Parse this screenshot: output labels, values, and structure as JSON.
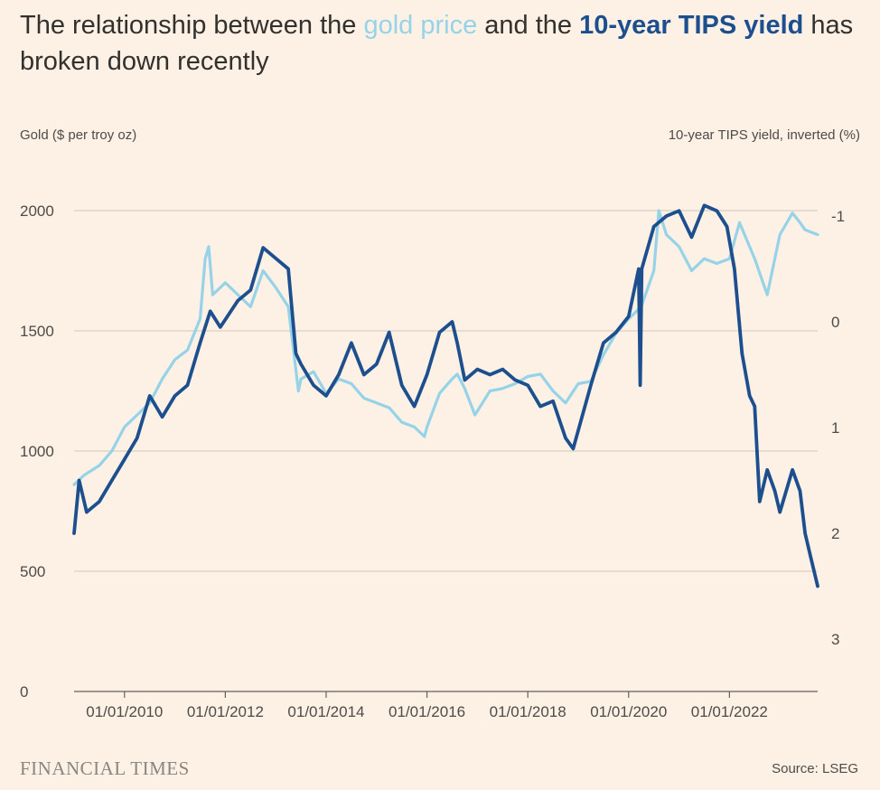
{
  "title": {
    "part1": "The relationship between the ",
    "gold": "gold price",
    "part2": " and the ",
    "tips": "10-year TIPS yield",
    "part3": " has broken down recently"
  },
  "left_axis_label": "Gold ($ per troy oz)",
  "right_axis_label": "10-year TIPS yield, inverted (%)",
  "brand": "FINANCIAL TIMES",
  "source": "Source: LSEG",
  "colors": {
    "gold": "#96d3e8",
    "tips": "#1d4f8f",
    "grid": "#cfc6bc",
    "background": "#fdf1e5"
  },
  "chart_data": {
    "type": "line",
    "title": "The relationship between the gold price and the 10-year TIPS yield has broken down recently",
    "ylabel_left": "Gold ($ per troy oz)",
    "ylabel_right": "10-year TIPS yield, inverted (%)",
    "ylim_left": [
      0,
      2000
    ],
    "yticks_left": [
      0,
      500,
      1000,
      1500,
      2000
    ],
    "yticks_right": [
      -1,
      0,
      1,
      2,
      3
    ],
    "right_axis_inverted": true,
    "x_range": [
      2009.0,
      2023.75
    ],
    "xtick_labels": [
      "01/01/2010",
      "01/01/2012",
      "01/01/2014",
      "01/01/2016",
      "01/01/2018",
      "01/01/2020",
      "01/01/2022"
    ],
    "xtick_years": [
      2010,
      2012,
      2014,
      2016,
      2018,
      2020,
      2022
    ],
    "series": [
      {
        "name": "Gold price",
        "axis": "left",
        "x": [
          2009.0,
          2009.2,
          2009.5,
          2009.75,
          2010.0,
          2010.25,
          2010.5,
          2010.75,
          2011.0,
          2011.25,
          2011.5,
          2011.6,
          2011.67,
          2011.75,
          2012.0,
          2012.25,
          2012.5,
          2012.75,
          2013.0,
          2013.25,
          2013.45,
          2013.5,
          2013.75,
          2014.0,
          2014.25,
          2014.5,
          2014.75,
          2015.0,
          2015.25,
          2015.5,
          2015.75,
          2015.95,
          2016.0,
          2016.25,
          2016.5,
          2016.6,
          2016.75,
          2016.95,
          2017.25,
          2017.5,
          2017.75,
          2018.0,
          2018.25,
          2018.5,
          2018.75,
          2019.0,
          2019.25,
          2019.5,
          2019.75,
          2020.0,
          2020.25,
          2020.5,
          2020.6,
          2020.75,
          2021.0,
          2021.25,
          2021.5,
          2021.75,
          2022.0,
          2022.2,
          2022.4,
          2022.5,
          2022.75,
          2022.85,
          2023.0,
          2023.25,
          2023.4,
          2023.5,
          2023.75
        ],
        "values": [
          860,
          900,
          940,
          1000,
          1100,
          1150,
          1200,
          1300,
          1380,
          1420,
          1550,
          1800,
          1850,
          1650,
          1700,
          1650,
          1600,
          1750,
          1680,
          1600,
          1250,
          1300,
          1330,
          1240,
          1300,
          1280,
          1220,
          1200,
          1180,
          1120,
          1100,
          1060,
          1100,
          1240,
          1300,
          1320,
          1260,
          1150,
          1250,
          1260,
          1280,
          1310,
          1320,
          1250,
          1200,
          1280,
          1290,
          1400,
          1490,
          1550,
          1600,
          1750,
          2000,
          1900,
          1850,
          1750,
          1800,
          1780,
          1800,
          1950,
          1850,
          1800,
          1650,
          1750,
          1900,
          1990,
          1950,
          1920,
          1900
        ]
      },
      {
        "name": "10-year TIPS yield (inverted)",
        "axis": "right",
        "x": [
          2009.0,
          2009.1,
          2009.25,
          2009.5,
          2009.75,
          2010.0,
          2010.25,
          2010.5,
          2010.75,
          2011.0,
          2011.25,
          2011.5,
          2011.7,
          2011.9,
          2012.25,
          2012.5,
          2012.75,
          2013.0,
          2013.25,
          2013.4,
          2013.5,
          2013.75,
          2014.0,
          2014.25,
          2014.5,
          2014.75,
          2015.0,
          2015.25,
          2015.5,
          2015.75,
          2016.0,
          2016.25,
          2016.5,
          2016.6,
          2016.75,
          2017.0,
          2017.25,
          2017.5,
          2017.75,
          2018.0,
          2018.25,
          2018.5,
          2018.75,
          2018.9,
          2019.25,
          2019.5,
          2019.75,
          2020.0,
          2020.2,
          2020.23,
          2020.26,
          2020.5,
          2020.75,
          2021.0,
          2021.25,
          2021.5,
          2021.75,
          2021.95,
          2022.1,
          2022.25,
          2022.4,
          2022.5,
          2022.6,
          2022.75,
          2022.9,
          2023.0,
          2023.25,
          2023.4,
          2023.5,
          2023.6,
          2023.75
        ],
        "values": [
          2.0,
          1.5,
          1.8,
          1.7,
          1.5,
          1.3,
          1.1,
          0.7,
          0.9,
          0.7,
          0.6,
          0.2,
          -0.1,
          0.05,
          -0.2,
          -0.3,
          -0.7,
          -0.6,
          -0.5,
          0.3,
          0.4,
          0.6,
          0.7,
          0.5,
          0.2,
          0.5,
          0.4,
          0.1,
          0.6,
          0.8,
          0.5,
          0.1,
          0.0,
          0.2,
          0.55,
          0.45,
          0.5,
          0.45,
          0.55,
          0.6,
          0.8,
          0.75,
          1.1,
          1.2,
          0.6,
          0.2,
          0.1,
          -0.05,
          -0.5,
          0.6,
          -0.5,
          -0.9,
          -1.0,
          -1.05,
          -0.8,
          -1.1,
          -1.05,
          -0.9,
          -0.5,
          0.3,
          0.7,
          0.8,
          1.7,
          1.4,
          1.6,
          1.8,
          1.4,
          1.6,
          2.0,
          2.2,
          2.5
        ]
      }
    ]
  }
}
